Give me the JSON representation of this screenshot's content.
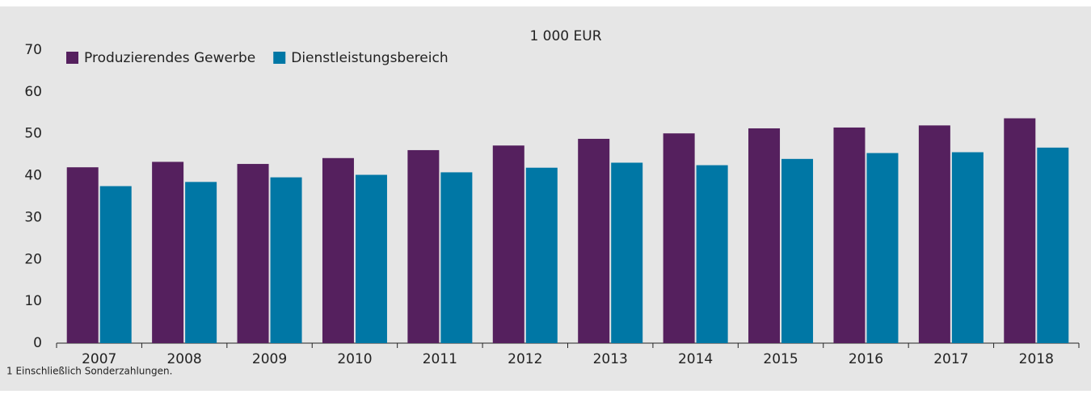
{
  "chart_data": {
    "type": "bar",
    "title": "1 000 EUR",
    "footnote": "1 Einschließlich Sonderzahlungen.",
    "categories": [
      "2007",
      "2008",
      "2009",
      "2010",
      "2011",
      "2012",
      "2013",
      "2014",
      "2015",
      "2016",
      "2017",
      "2018"
    ],
    "series": [
      {
        "name": "Produzierendes Gewerbe",
        "color": "#55205e",
        "values": [
          42.0,
          43.3,
          42.8,
          44.2,
          46.1,
          47.2,
          48.8,
          50.1,
          51.3,
          51.5,
          52.0,
          53.7
        ]
      },
      {
        "name": "Dienstleistungsbereich",
        "color": "#0077a5",
        "values": [
          37.5,
          38.5,
          39.6,
          40.2,
          40.8,
          41.9,
          43.1,
          42.5,
          44.0,
          45.4,
          45.6,
          46.7
        ]
      }
    ],
    "ylim": [
      0,
      70
    ],
    "yticks": [
      0,
      10,
      20,
      30,
      40,
      50,
      60,
      70
    ],
    "grid": false,
    "legend": "top-left"
  }
}
